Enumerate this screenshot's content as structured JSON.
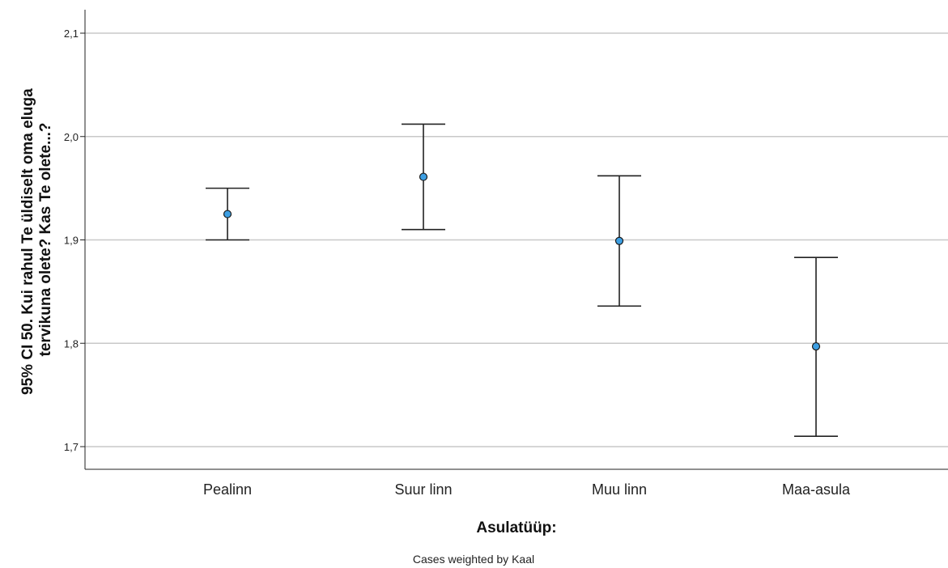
{
  "chart_data": {
    "type": "errorbar",
    "categories": [
      "Pealinn",
      "Suur linn",
      "Muu linn",
      "Maa-asula"
    ],
    "series": [
      {
        "mean": [
          1.925,
          1.961,
          1.899,
          1.797
        ],
        "lower": [
          1.9,
          1.91,
          1.836,
          1.71
        ],
        "upper": [
          1.95,
          2.012,
          1.962,
          1.883
        ]
      }
    ],
    "ylabel_lines": [
      "95% CI 50. Kui rahul Te üldiselt oma eluga",
      "tervikuna olete? Kas Te olete...?"
    ],
    "xlabel": "Asulatüüp:",
    "note": "Cases weighted by Kaal",
    "yticks": [
      "1,7",
      "1,8",
      "1,9",
      "2,0",
      "2,1"
    ],
    "ytick_values": [
      1.7,
      1.8,
      1.9,
      2.0,
      2.1
    ],
    "grid": true,
    "colors": {
      "marker": "#3d9fe3",
      "errorbar": "#222222",
      "grid": "#c8c8c8"
    }
  }
}
